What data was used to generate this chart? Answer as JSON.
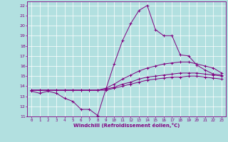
{
  "xlabel": "Windchill (Refroidissement éolien,°C)",
  "background_color": "#b2e0e0",
  "line_color": "#800080",
  "grid_color": "#ffffff",
  "xlim": [
    -0.5,
    23.5
  ],
  "ylim": [
    11,
    22.4
  ],
  "xticks": [
    0,
    1,
    2,
    3,
    4,
    5,
    6,
    7,
    8,
    9,
    10,
    11,
    12,
    13,
    14,
    15,
    16,
    17,
    18,
    19,
    20,
    21,
    22,
    23
  ],
  "yticks": [
    11,
    12,
    13,
    14,
    15,
    16,
    17,
    18,
    19,
    20,
    21,
    22
  ],
  "lines": [
    {
      "x": [
        0,
        1,
        2,
        3,
        4,
        5,
        6,
        7,
        8,
        9,
        10,
        11,
        12,
        13,
        14,
        15,
        16,
        17,
        18,
        19,
        20,
        21,
        22,
        23
      ],
      "y": [
        13.5,
        13.3,
        13.5,
        13.3,
        12.8,
        12.5,
        11.7,
        11.7,
        11.1,
        13.7,
        16.2,
        18.5,
        20.2,
        21.5,
        22.0,
        19.6,
        19.0,
        19.0,
        17.1,
        17.0,
        16.1,
        15.6,
        15.2,
        15.1
      ]
    },
    {
      "x": [
        0,
        1,
        2,
        3,
        4,
        5,
        6,
        7,
        8,
        9,
        10,
        11,
        12,
        13,
        14,
        15,
        16,
        17,
        18,
        19,
        20,
        21,
        22,
        23
      ],
      "y": [
        13.6,
        13.6,
        13.6,
        13.6,
        13.6,
        13.6,
        13.6,
        13.6,
        13.6,
        13.8,
        14.2,
        14.7,
        15.1,
        15.5,
        15.8,
        16.0,
        16.2,
        16.3,
        16.4,
        16.4,
        16.2,
        16.0,
        15.8,
        15.3
      ]
    },
    {
      "x": [
        0,
        1,
        2,
        3,
        4,
        5,
        6,
        7,
        8,
        9,
        10,
        11,
        12,
        13,
        14,
        15,
        16,
        17,
        18,
        19,
        20,
        21,
        22,
        23
      ],
      "y": [
        13.6,
        13.6,
        13.6,
        13.6,
        13.6,
        13.6,
        13.6,
        13.6,
        13.6,
        13.7,
        13.9,
        14.2,
        14.4,
        14.7,
        14.9,
        15.0,
        15.1,
        15.2,
        15.3,
        15.3,
        15.3,
        15.2,
        15.1,
        15.0
      ]
    },
    {
      "x": [
        0,
        1,
        2,
        3,
        4,
        5,
        6,
        7,
        8,
        9,
        10,
        11,
        12,
        13,
        14,
        15,
        16,
        17,
        18,
        19,
        20,
        21,
        22,
        23
      ],
      "y": [
        13.6,
        13.6,
        13.6,
        13.6,
        13.6,
        13.6,
        13.6,
        13.6,
        13.6,
        13.6,
        13.8,
        14.0,
        14.2,
        14.4,
        14.6,
        14.7,
        14.8,
        14.9,
        14.9,
        15.0,
        15.0,
        14.9,
        14.8,
        14.7
      ]
    }
  ]
}
